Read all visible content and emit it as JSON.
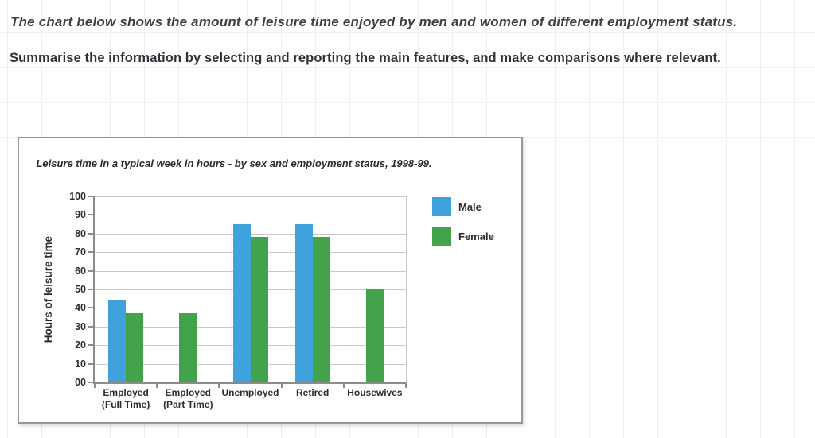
{
  "instructions": {
    "line1": "The chart below shows the amount of leisure time enjoyed by men and women of different employment status.",
    "line2": "Summarise the information by selecting and reporting the main features, and make comparisons where relevant."
  },
  "chart_data": {
    "type": "bar",
    "title": "Leisure time in a typical week in hours - by sex and employment status, 1998-99.",
    "xlabel": "",
    "ylabel": "Hours of leisure time",
    "ylim": [
      0,
      100
    ],
    "ytick_step": 10,
    "ytick_labels": [
      "00",
      "10",
      "20",
      "30",
      "40",
      "50",
      "60",
      "70",
      "80",
      "90",
      "100"
    ],
    "grid": true,
    "legend_position": "top-right",
    "categories": [
      {
        "name": "Employed (Full Time)",
        "lines": [
          "Employed",
          "(Full Time)"
        ]
      },
      {
        "name": "Employed (Part Time)",
        "lines": [
          "Employed",
          "(Part Time)"
        ]
      },
      {
        "name": "Unemployed",
        "lines": [
          "Unemployed"
        ]
      },
      {
        "name": "Retired",
        "lines": [
          "Retired"
        ]
      },
      {
        "name": "Housewives",
        "lines": [
          "Housewives"
        ]
      }
    ],
    "series": [
      {
        "name": "Male",
        "color": "#3fa2dd",
        "values": [
          44,
          null,
          85,
          85,
          null
        ]
      },
      {
        "name": "Female",
        "color": "#42a34c",
        "values": [
          37,
          37,
          78,
          78,
          50
        ]
      }
    ]
  }
}
